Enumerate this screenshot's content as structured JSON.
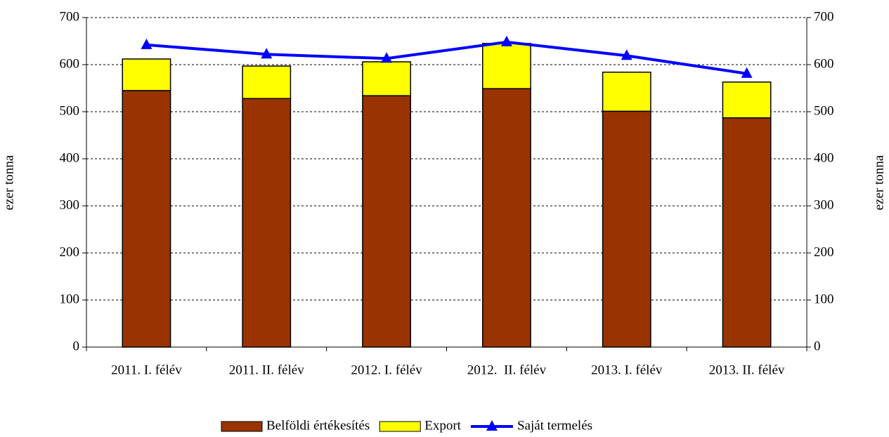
{
  "chart_data": {
    "type": "bar",
    "categories": [
      "2011. I. félév",
      "2011. II. félév",
      "2012. I. félév",
      "2012.  II. félév",
      "2013. I. félév",
      "2013. II. félév"
    ],
    "series": [
      {
        "name": "Belföldi értékesítés",
        "color": "#993300",
        "values": [
          545,
          528,
          534,
          549,
          501,
          487
        ]
      },
      {
        "name": "Export",
        "color": "#ffff00",
        "values": [
          67,
          69,
          72,
          96,
          83,
          76
        ]
      },
      {
        "name": "Saját termelés",
        "color": "#0000ff",
        "type": "line",
        "axis": "y2",
        "values": [
          642,
          622,
          613,
          648,
          619,
          581
        ]
      }
    ],
    "ylabel": "ezer tonna",
    "y2label": "ezer tonna",
    "ylim": [
      0,
      700
    ],
    "yticks": [
      0,
      100,
      200,
      300,
      400,
      500,
      600,
      700
    ],
    "y2lim": [
      0,
      700
    ],
    "y2ticks": [
      0,
      100,
      200,
      300,
      400,
      500,
      600,
      700
    ],
    "grid": true,
    "legend": "bottom"
  }
}
